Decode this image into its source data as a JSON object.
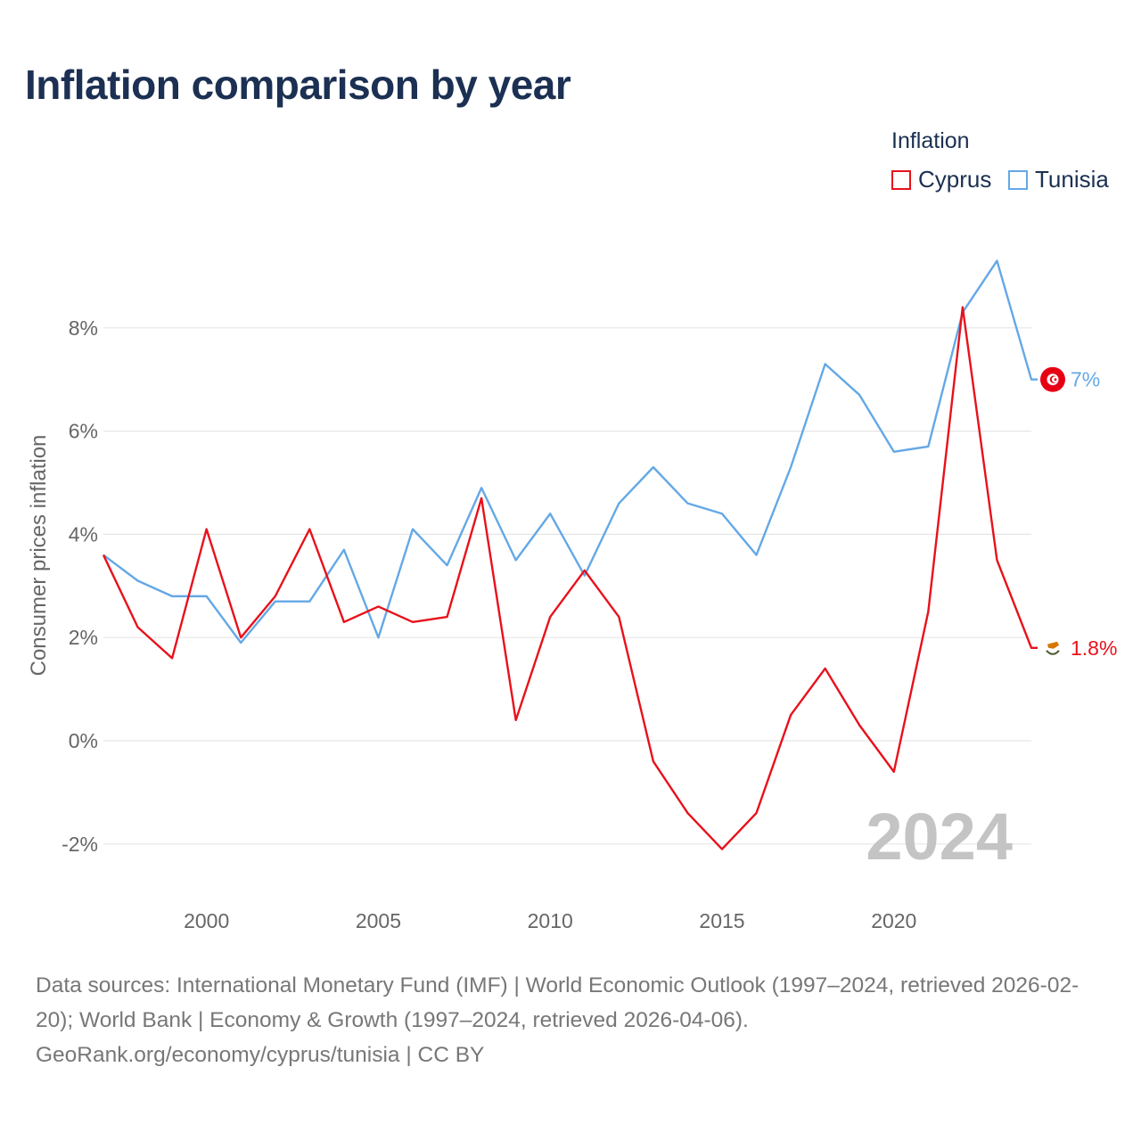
{
  "title": "Inflation comparison by year",
  "legend": {
    "title": "Inflation",
    "items": [
      {
        "label": "Cyprus",
        "color": "#e8111b"
      },
      {
        "label": "Tunisia",
        "color": "#64a8e6"
      }
    ]
  },
  "source": "Data sources: International Monetary Fund (IMF) | World Economic Outlook (1997–2024, retrieved 2026-02-20); World Bank | Economy & Growth (1997–2024, retrieved 2026-04-06). GeoRank.org/economy/cyprus/tunisia | CC BY",
  "chart_data": {
    "type": "line",
    "title": "Inflation comparison by year",
    "xlabel": "",
    "ylabel": "Consumer prices inflation",
    "x": [
      1997,
      1998,
      1999,
      2000,
      2001,
      2002,
      2003,
      2004,
      2005,
      2006,
      2007,
      2008,
      2009,
      2010,
      2011,
      2012,
      2013,
      2014,
      2015,
      2016,
      2017,
      2018,
      2019,
      2020,
      2021,
      2022,
      2023,
      2024
    ],
    "xticks": [
      2000,
      2005,
      2010,
      2015,
      2020
    ],
    "xtick_labels": [
      "2000",
      "2005",
      "2010",
      "2015",
      "2020"
    ],
    "yticks": [
      -2,
      0,
      2,
      4,
      6,
      8
    ],
    "ytick_labels": [
      "-2%",
      "0%",
      "2%",
      "4%",
      "6%",
      "8%"
    ],
    "xlim": [
      1997,
      2024
    ],
    "ylim": [
      -3,
      9.5
    ],
    "grid": true,
    "legend_position": "top-right",
    "current_year": "2024",
    "series": [
      {
        "name": "Cyprus",
        "color": "#e8111b",
        "values": [
          3.6,
          2.2,
          1.6,
          4.1,
          2.0,
          2.8,
          4.1,
          2.3,
          2.6,
          2.3,
          2.4,
          4.7,
          0.4,
          2.4,
          3.3,
          2.4,
          -0.4,
          -1.4,
          -2.1,
          -1.4,
          0.5,
          1.4,
          0.3,
          -0.6,
          2.5,
          8.4,
          3.5,
          1.8
        ],
        "end_label": "1.8%",
        "flag": "cyprus-flag-icon"
      },
      {
        "name": "Tunisia",
        "color": "#64a8e6",
        "values": [
          3.6,
          3.1,
          2.8,
          2.8,
          1.9,
          2.7,
          2.7,
          3.7,
          2.0,
          4.1,
          3.4,
          4.9,
          3.5,
          4.4,
          3.2,
          4.6,
          5.3,
          4.6,
          4.4,
          3.6,
          5.3,
          7.3,
          6.7,
          5.6,
          5.7,
          8.3,
          9.3,
          7.0
        ],
        "end_label": "7%",
        "flag": "tunisia-flag-icon"
      }
    ]
  }
}
